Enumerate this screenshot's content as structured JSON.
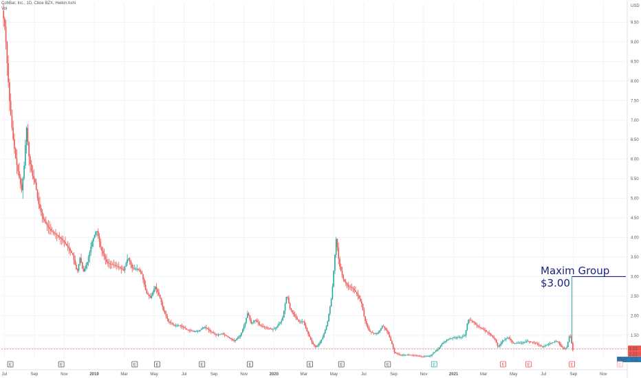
{
  "header": {
    "symbol_line": "CohBar, Inc., 1D, Cboe BZX, Heikin Ashi",
    "sub_line": "Vol"
  },
  "currency": "USD",
  "annotation": {
    "text": "Maxim Group $3.00",
    "color": "#1a237e"
  },
  "price_tags": {
    "last": "1.15",
    "prev": "1.12",
    "post_label": "Post",
    "post_value": "1.11"
  },
  "colors": {
    "up": "#26a69a",
    "down": "#ef5350",
    "grid": "#f0f3fa",
    "annotation_line": "#1a237e"
  },
  "chart_data": {
    "type": "candlestick",
    "style": "Heikin Ashi",
    "interval": "1D",
    "ylim": [
      0.9,
      10.0
    ],
    "y_ticks": [
      1.15,
      1.5,
      2.0,
      2.5,
      3.0,
      3.5,
      4.0,
      4.5,
      5.0,
      5.5,
      6.0,
      6.5,
      7.0,
      7.5,
      8.0,
      8.5,
      9.0,
      9.5
    ],
    "x_ticks": [
      {
        "label": "Jul",
        "t": 0.0
      },
      {
        "label": "Sep",
        "t": 2.0
      },
      {
        "label": "Nov",
        "t": 4.0
      },
      {
        "label": "2019",
        "t": 6.0,
        "bold": true
      },
      {
        "label": "Mar",
        "t": 8.0
      },
      {
        "label": "May",
        "t": 10.0
      },
      {
        "label": "Jul",
        "t": 12.0
      },
      {
        "label": "Sep",
        "t": 14.0
      },
      {
        "label": "Nov",
        "t": 16.0
      },
      {
        "label": "2020",
        "t": 18.0,
        "bold": true
      },
      {
        "label": "Mar",
        "t": 20.0
      },
      {
        "label": "May",
        "t": 22.0
      },
      {
        "label": "Jul",
        "t": 24.0
      },
      {
        "label": "Sep",
        "t": 26.0
      },
      {
        "label": "Nov",
        "t": 28.0
      },
      {
        "label": "2021",
        "t": 30.0,
        "bold": true
      },
      {
        "label": "Mar",
        "t": 32.0
      },
      {
        "label": "May",
        "t": 34.0
      },
      {
        "label": "Jul",
        "t": 36.0
      },
      {
        "label": "Sep",
        "t": 38.0
      },
      {
        "label": "Nov",
        "t": 40.0
      }
    ],
    "x_range": [
      -0.2,
      41.5
    ],
    "series": [
      {
        "name": "price",
        "points": [
          [
            -0.1,
            9.8
          ],
          [
            0.1,
            9.3
          ],
          [
            0.2,
            8.6
          ],
          [
            0.4,
            7.4
          ],
          [
            0.6,
            6.6
          ],
          [
            0.8,
            6.0
          ],
          [
            1.0,
            5.6
          ],
          [
            1.2,
            5.2
          ],
          [
            1.4,
            6.0
          ],
          [
            1.5,
            6.9
          ],
          [
            1.7,
            6.0
          ],
          [
            1.9,
            5.6
          ],
          [
            2.1,
            5.4
          ],
          [
            2.3,
            4.9
          ],
          [
            2.6,
            4.5
          ],
          [
            2.9,
            4.3
          ],
          [
            3.2,
            4.15
          ],
          [
            3.6,
            4.05
          ],
          [
            4.0,
            3.9
          ],
          [
            4.3,
            3.75
          ],
          [
            4.6,
            3.55
          ],
          [
            4.9,
            3.1
          ],
          [
            5.1,
            3.5
          ],
          [
            5.3,
            3.1
          ],
          [
            5.6,
            3.4
          ],
          [
            5.9,
            3.9
          ],
          [
            6.2,
            4.2
          ],
          [
            6.5,
            3.7
          ],
          [
            6.9,
            3.35
          ],
          [
            7.3,
            3.3
          ],
          [
            7.7,
            3.25
          ],
          [
            8.0,
            3.15
          ],
          [
            8.3,
            3.5
          ],
          [
            8.6,
            3.2
          ],
          [
            8.9,
            3.2
          ],
          [
            9.2,
            3.1
          ],
          [
            9.5,
            2.6
          ],
          [
            9.8,
            2.45
          ],
          [
            10.1,
            2.75
          ],
          [
            10.4,
            2.5
          ],
          [
            10.7,
            2.1
          ],
          [
            11.0,
            1.85
          ],
          [
            11.4,
            1.75
          ],
          [
            11.8,
            1.75
          ],
          [
            12.2,
            1.65
          ],
          [
            12.6,
            1.6
          ],
          [
            13.0,
            1.6
          ],
          [
            13.4,
            1.72
          ],
          [
            13.8,
            1.6
          ],
          [
            14.2,
            1.5
          ],
          [
            14.6,
            1.55
          ],
          [
            15.0,
            1.45
          ],
          [
            15.4,
            1.35
          ],
          [
            15.8,
            1.5
          ],
          [
            16.1,
            1.8
          ],
          [
            16.3,
            2.1
          ],
          [
            16.5,
            1.8
          ],
          [
            16.8,
            1.9
          ],
          [
            17.1,
            1.75
          ],
          [
            17.5,
            1.7
          ],
          [
            17.9,
            1.65
          ],
          [
            18.2,
            1.7
          ],
          [
            18.6,
            1.9
          ],
          [
            18.9,
            2.55
          ],
          [
            19.1,
            2.2
          ],
          [
            19.4,
            2.0
          ],
          [
            19.7,
            1.85
          ],
          [
            20.0,
            1.85
          ],
          [
            20.3,
            1.55
          ],
          [
            20.6,
            1.3
          ],
          [
            20.8,
            1.2
          ],
          [
            21.0,
            1.25
          ],
          [
            21.3,
            1.45
          ],
          [
            21.6,
            1.8
          ],
          [
            21.9,
            2.5
          ],
          [
            22.1,
            3.5
          ],
          [
            22.2,
            4.0
          ],
          [
            22.4,
            3.3
          ],
          [
            22.7,
            2.9
          ],
          [
            23.0,
            2.75
          ],
          [
            23.3,
            2.7
          ],
          [
            23.6,
            2.55
          ],
          [
            23.9,
            2.3
          ],
          [
            24.1,
            1.9
          ],
          [
            24.4,
            1.6
          ],
          [
            24.7,
            1.55
          ],
          [
            25.0,
            1.55
          ],
          [
            25.3,
            1.75
          ],
          [
            25.6,
            1.6
          ],
          [
            25.9,
            1.3
          ],
          [
            26.1,
            1.05
          ],
          [
            26.5,
            1.0
          ],
          [
            27.0,
            1.0
          ],
          [
            27.5,
            0.98
          ],
          [
            28.0,
            0.95
          ],
          [
            28.5,
            0.98
          ],
          [
            29.0,
            1.15
          ],
          [
            29.3,
            1.3
          ],
          [
            29.7,
            1.4
          ],
          [
            30.1,
            1.45
          ],
          [
            30.5,
            1.45
          ],
          [
            30.8,
            1.5
          ],
          [
            31.0,
            1.9
          ],
          [
            31.3,
            1.85
          ],
          [
            31.6,
            1.75
          ],
          [
            32.0,
            1.65
          ],
          [
            32.4,
            1.55
          ],
          [
            32.8,
            1.4
          ],
          [
            33.0,
            1.2
          ],
          [
            33.3,
            1.35
          ],
          [
            33.7,
            1.45
          ],
          [
            34.0,
            1.3
          ],
          [
            34.5,
            1.3
          ],
          [
            35.0,
            1.35
          ],
          [
            35.5,
            1.3
          ],
          [
            36.0,
            1.2
          ],
          [
            36.5,
            1.3
          ],
          [
            37.0,
            1.35
          ],
          [
            37.2,
            1.22
          ],
          [
            37.4,
            1.15
          ],
          [
            37.6,
            1.2
          ],
          [
            37.8,
            1.55
          ],
          [
            38.0,
            1.12
          ]
        ]
      }
    ],
    "annotation_level": 3.0,
    "annotation_from_t": 37.9,
    "events": [
      {
        "t": 0.4,
        "label": "E",
        "kind": "earnings"
      },
      {
        "t": 3.8,
        "label": "E",
        "kind": "earnings"
      },
      {
        "t": 8.7,
        "label": "E",
        "kind": "earnings"
      },
      {
        "t": 10.2,
        "label": "E",
        "kind": "earnings"
      },
      {
        "t": 13.2,
        "label": "E",
        "kind": "earnings"
      },
      {
        "t": 16.4,
        "label": "E",
        "kind": "earnings"
      },
      {
        "t": 20.4,
        "label": "E",
        "kind": "earnings"
      },
      {
        "t": 22.5,
        "label": "E",
        "kind": "earnings"
      },
      {
        "t": 25.6,
        "label": "E",
        "kind": "earnings"
      },
      {
        "t": 28.7,
        "label": "E",
        "kind": "earnings-up"
      },
      {
        "t": 33.3,
        "label": "E",
        "kind": "earnings-down"
      },
      {
        "t": 35.0,
        "label": "E",
        "kind": "earnings-down"
      },
      {
        "t": 37.9,
        "label": "E",
        "kind": "earnings-down"
      },
      {
        "t": 41.1,
        "label": "E",
        "kind": "earnings-future"
      }
    ]
  }
}
